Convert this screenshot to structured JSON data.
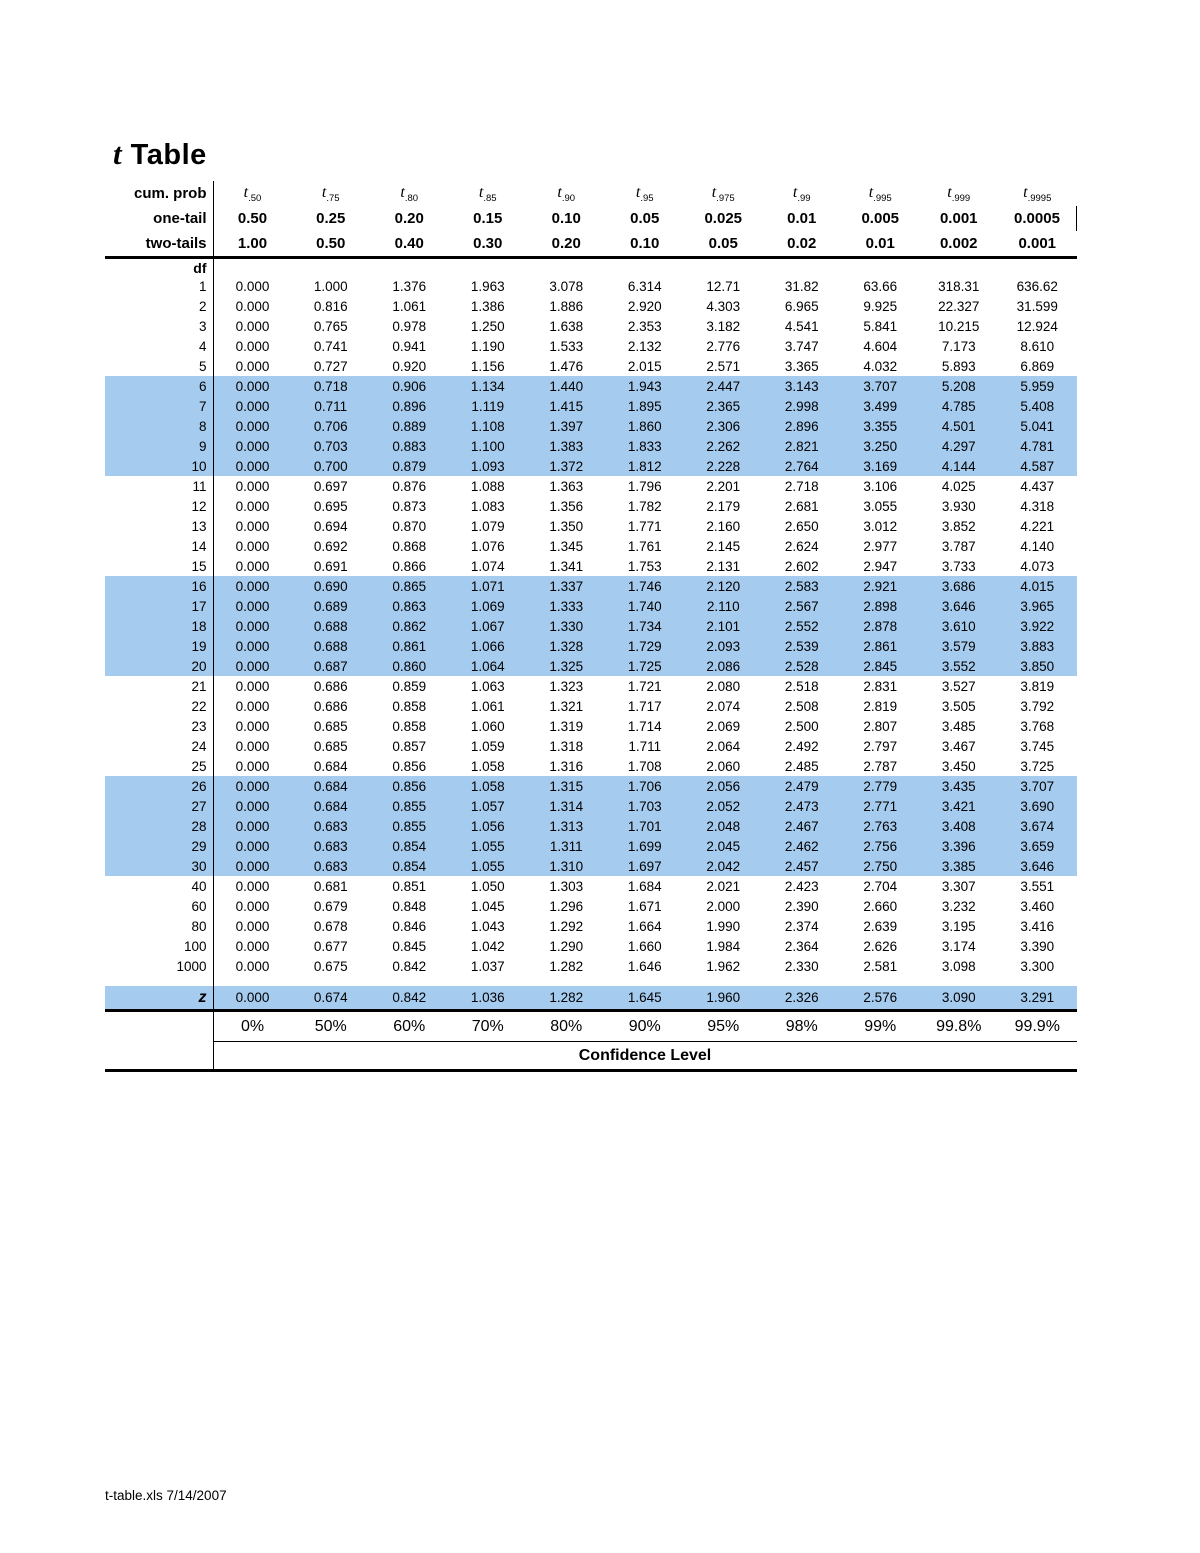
{
  "title": {
    "t_letter": "t",
    "rest": " Table"
  },
  "header": {
    "cum_prob_label": "cum. prob",
    "one_tail_label": "one-tail",
    "two_tails_label": "two-tails",
    "df_label": "df",
    "t_symbol": "t",
    "t_subscripts": [
      ".50",
      ".75",
      ".80",
      ".85",
      ".90",
      ".95",
      ".975",
      ".99",
      ".995",
      ".999",
      ".9995"
    ],
    "one_tail_values": [
      "0.50",
      "0.25",
      "0.20",
      "0.15",
      "0.10",
      "0.05",
      "0.025",
      "0.01",
      "0.005",
      "0.001",
      "0.0005"
    ],
    "two_tails_values": [
      "1.00",
      "0.50",
      "0.40",
      "0.30",
      "0.20",
      "0.10",
      "0.05",
      "0.02",
      "0.01",
      "0.002",
      "0.001"
    ]
  },
  "rows": [
    {
      "df": "1",
      "highlight": false,
      "values": [
        "0.000",
        "1.000",
        "1.376",
        "1.963",
        "3.078",
        "6.314",
        "12.71",
        "31.82",
        "63.66",
        "318.31",
        "636.62"
      ]
    },
    {
      "df": "2",
      "highlight": false,
      "values": [
        "0.000",
        "0.816",
        "1.061",
        "1.386",
        "1.886",
        "2.920",
        "4.303",
        "6.965",
        "9.925",
        "22.327",
        "31.599"
      ]
    },
    {
      "df": "3",
      "highlight": false,
      "values": [
        "0.000",
        "0.765",
        "0.978",
        "1.250",
        "1.638",
        "2.353",
        "3.182",
        "4.541",
        "5.841",
        "10.215",
        "12.924"
      ]
    },
    {
      "df": "4",
      "highlight": false,
      "values": [
        "0.000",
        "0.741",
        "0.941",
        "1.190",
        "1.533",
        "2.132",
        "2.776",
        "3.747",
        "4.604",
        "7.173",
        "8.610"
      ]
    },
    {
      "df": "5",
      "highlight": false,
      "values": [
        "0.000",
        "0.727",
        "0.920",
        "1.156",
        "1.476",
        "2.015",
        "2.571",
        "3.365",
        "4.032",
        "5.893",
        "6.869"
      ]
    },
    {
      "df": "6",
      "highlight": true,
      "values": [
        "0.000",
        "0.718",
        "0.906",
        "1.134",
        "1.440",
        "1.943",
        "2.447",
        "3.143",
        "3.707",
        "5.208",
        "5.959"
      ]
    },
    {
      "df": "7",
      "highlight": true,
      "values": [
        "0.000",
        "0.711",
        "0.896",
        "1.119",
        "1.415",
        "1.895",
        "2.365",
        "2.998",
        "3.499",
        "4.785",
        "5.408"
      ]
    },
    {
      "df": "8",
      "highlight": true,
      "values": [
        "0.000",
        "0.706",
        "0.889",
        "1.108",
        "1.397",
        "1.860",
        "2.306",
        "2.896",
        "3.355",
        "4.501",
        "5.041"
      ]
    },
    {
      "df": "9",
      "highlight": true,
      "values": [
        "0.000",
        "0.703",
        "0.883",
        "1.100",
        "1.383",
        "1.833",
        "2.262",
        "2.821",
        "3.250",
        "4.297",
        "4.781"
      ]
    },
    {
      "df": "10",
      "highlight": true,
      "values": [
        "0.000",
        "0.700",
        "0.879",
        "1.093",
        "1.372",
        "1.812",
        "2.228",
        "2.764",
        "3.169",
        "4.144",
        "4.587"
      ]
    },
    {
      "df": "11",
      "highlight": false,
      "values": [
        "0.000",
        "0.697",
        "0.876",
        "1.088",
        "1.363",
        "1.796",
        "2.201",
        "2.718",
        "3.106",
        "4.025",
        "4.437"
      ]
    },
    {
      "df": "12",
      "highlight": false,
      "values": [
        "0.000",
        "0.695",
        "0.873",
        "1.083",
        "1.356",
        "1.782",
        "2.179",
        "2.681",
        "3.055",
        "3.930",
        "4.318"
      ]
    },
    {
      "df": "13",
      "highlight": false,
      "values": [
        "0.000",
        "0.694",
        "0.870",
        "1.079",
        "1.350",
        "1.771",
        "2.160",
        "2.650",
        "3.012",
        "3.852",
        "4.221"
      ]
    },
    {
      "df": "14",
      "highlight": false,
      "values": [
        "0.000",
        "0.692",
        "0.868",
        "1.076",
        "1.345",
        "1.761",
        "2.145",
        "2.624",
        "2.977",
        "3.787",
        "4.140"
      ]
    },
    {
      "df": "15",
      "highlight": false,
      "values": [
        "0.000",
        "0.691",
        "0.866",
        "1.074",
        "1.341",
        "1.753",
        "2.131",
        "2.602",
        "2.947",
        "3.733",
        "4.073"
      ]
    },
    {
      "df": "16",
      "highlight": true,
      "values": [
        "0.000",
        "0.690",
        "0.865",
        "1.071",
        "1.337",
        "1.746",
        "2.120",
        "2.583",
        "2.921",
        "3.686",
        "4.015"
      ]
    },
    {
      "df": "17",
      "highlight": true,
      "values": [
        "0.000",
        "0.689",
        "0.863",
        "1.069",
        "1.333",
        "1.740",
        "2.110",
        "2.567",
        "2.898",
        "3.646",
        "3.965"
      ]
    },
    {
      "df": "18",
      "highlight": true,
      "values": [
        "0.000",
        "0.688",
        "0.862",
        "1.067",
        "1.330",
        "1.734",
        "2.101",
        "2.552",
        "2.878",
        "3.610",
        "3.922"
      ]
    },
    {
      "df": "19",
      "highlight": true,
      "values": [
        "0.000",
        "0.688",
        "0.861",
        "1.066",
        "1.328",
        "1.729",
        "2.093",
        "2.539",
        "2.861",
        "3.579",
        "3.883"
      ]
    },
    {
      "df": "20",
      "highlight": true,
      "values": [
        "0.000",
        "0.687",
        "0.860",
        "1.064",
        "1.325",
        "1.725",
        "2.086",
        "2.528",
        "2.845",
        "3.552",
        "3.850"
      ]
    },
    {
      "df": "21",
      "highlight": false,
      "values": [
        "0.000",
        "0.686",
        "0.859",
        "1.063",
        "1.323",
        "1.721",
        "2.080",
        "2.518",
        "2.831",
        "3.527",
        "3.819"
      ]
    },
    {
      "df": "22",
      "highlight": false,
      "values": [
        "0.000",
        "0.686",
        "0.858",
        "1.061",
        "1.321",
        "1.717",
        "2.074",
        "2.508",
        "2.819",
        "3.505",
        "3.792"
      ]
    },
    {
      "df": "23",
      "highlight": false,
      "values": [
        "0.000",
        "0.685",
        "0.858",
        "1.060",
        "1.319",
        "1.714",
        "2.069",
        "2.500",
        "2.807",
        "3.485",
        "3.768"
      ]
    },
    {
      "df": "24",
      "highlight": false,
      "values": [
        "0.000",
        "0.685",
        "0.857",
        "1.059",
        "1.318",
        "1.711",
        "2.064",
        "2.492",
        "2.797",
        "3.467",
        "3.745"
      ]
    },
    {
      "df": "25",
      "highlight": false,
      "values": [
        "0.000",
        "0.684",
        "0.856",
        "1.058",
        "1.316",
        "1.708",
        "2.060",
        "2.485",
        "2.787",
        "3.450",
        "3.725"
      ]
    },
    {
      "df": "26",
      "highlight": true,
      "values": [
        "0.000",
        "0.684",
        "0.856",
        "1.058",
        "1.315",
        "1.706",
        "2.056",
        "2.479",
        "2.779",
        "3.435",
        "3.707"
      ]
    },
    {
      "df": "27",
      "highlight": true,
      "values": [
        "0.000",
        "0.684",
        "0.855",
        "1.057",
        "1.314",
        "1.703",
        "2.052",
        "2.473",
        "2.771",
        "3.421",
        "3.690"
      ]
    },
    {
      "df": "28",
      "highlight": true,
      "values": [
        "0.000",
        "0.683",
        "0.855",
        "1.056",
        "1.313",
        "1.701",
        "2.048",
        "2.467",
        "2.763",
        "3.408",
        "3.674"
      ]
    },
    {
      "df": "29",
      "highlight": true,
      "values": [
        "0.000",
        "0.683",
        "0.854",
        "1.055",
        "1.311",
        "1.699",
        "2.045",
        "2.462",
        "2.756",
        "3.396",
        "3.659"
      ]
    },
    {
      "df": "30",
      "highlight": true,
      "values": [
        "0.000",
        "0.683",
        "0.854",
        "1.055",
        "1.310",
        "1.697",
        "2.042",
        "2.457",
        "2.750",
        "3.385",
        "3.646"
      ]
    },
    {
      "df": "40",
      "highlight": false,
      "values": [
        "0.000",
        "0.681",
        "0.851",
        "1.050",
        "1.303",
        "1.684",
        "2.021",
        "2.423",
        "2.704",
        "3.307",
        "3.551"
      ]
    },
    {
      "df": "60",
      "highlight": false,
      "values": [
        "0.000",
        "0.679",
        "0.848",
        "1.045",
        "1.296",
        "1.671",
        "2.000",
        "2.390",
        "2.660",
        "3.232",
        "3.460"
      ]
    },
    {
      "df": "80",
      "highlight": false,
      "values": [
        "0.000",
        "0.678",
        "0.846",
        "1.043",
        "1.292",
        "1.664",
        "1.990",
        "2.374",
        "2.639",
        "3.195",
        "3.416"
      ]
    },
    {
      "df": "100",
      "highlight": false,
      "values": [
        "0.000",
        "0.677",
        "0.845",
        "1.042",
        "1.290",
        "1.660",
        "1.984",
        "2.364",
        "2.626",
        "3.174",
        "3.390"
      ]
    },
    {
      "df": "1000",
      "highlight": false,
      "values": [
        "0.000",
        "0.675",
        "0.842",
        "1.037",
        "1.282",
        "1.646",
        "1.962",
        "2.330",
        "2.581",
        "3.098",
        "3.300"
      ]
    }
  ],
  "z_row": {
    "label": "z",
    "highlight": true,
    "values": [
      "0.000",
      "0.674",
      "0.842",
      "1.036",
      "1.282",
      "1.645",
      "1.960",
      "2.326",
      "2.576",
      "3.090",
      "3.291"
    ]
  },
  "confidence": {
    "values": [
      "0%",
      "50%",
      "60%",
      "70%",
      "80%",
      "90%",
      "95%",
      "98%",
      "99%",
      "99.8%",
      "99.9%"
    ],
    "label": "Confidence Level"
  },
  "page_footer": "t-table.xls 7/14/2007"
}
